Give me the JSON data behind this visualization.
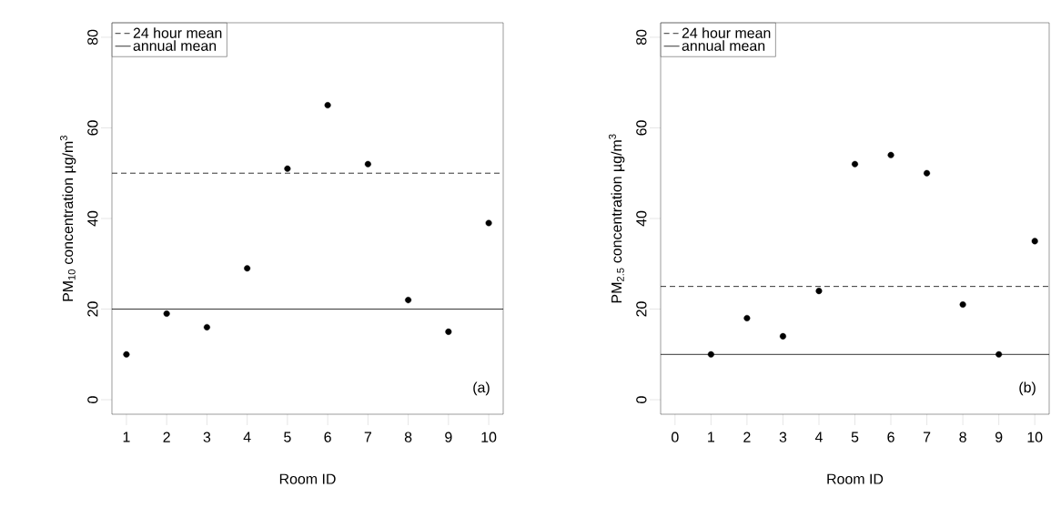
{
  "chart_data": [
    {
      "type": "scatter",
      "x": [
        1,
        2,
        3,
        4,
        5,
        6,
        7,
        8,
        9,
        10
      ],
      "values": [
        10,
        19,
        16,
        29,
        51,
        65,
        52,
        22,
        15,
        39
      ],
      "color": "#000000",
      "marker": "circle",
      "xlim": [
        0.64,
        10.36
      ],
      "ylim": [
        -3.2,
        83.2
      ],
      "xticks": [
        1,
        2,
        3,
        4,
        5,
        6,
        7,
        8,
        9,
        10
      ],
      "yticks": [
        0,
        20,
        40,
        60,
        80
      ],
      "xlabel": "Room ID",
      "ylabel": "PM$_{10}$ concentration µg/m$^{3}$",
      "ref_lines": [
        {
          "axis": "y",
          "value": 50,
          "label": "24 hour mean",
          "line_style": "dashed",
          "color": "#000000"
        },
        {
          "axis": "y",
          "value": 20,
          "label": "annual mean",
          "line_style": "solid",
          "color": "#000000"
        }
      ],
      "legend": "top left",
      "annotations": [
        "(a)"
      ]
    },
    {
      "type": "scatter",
      "x": [
        1,
        2,
        3,
        4,
        5,
        6,
        7,
        8,
        9,
        10
      ],
      "values": [
        10,
        18,
        14,
        24,
        52,
        54,
        50,
        21,
        10,
        35
      ],
      "color": "#000000",
      "marker": "circle",
      "xlim": [
        -0.4,
        10.4
      ],
      "ylim": [
        -3.2,
        83.2
      ],
      "xticks": [
        0,
        1,
        2,
        3,
        4,
        5,
        6,
        7,
        8,
        9,
        10
      ],
      "yticks": [
        0,
        20,
        40,
        60,
        80
      ],
      "xlabel": "Room ID",
      "ylabel": "PM$_{2.5}$ concentration µg/m$^{3}$",
      "ref_lines": [
        {
          "axis": "y",
          "value": 25,
          "label": "24 hour mean",
          "line_style": "dashed",
          "color": "#000000"
        },
        {
          "axis": "y",
          "value": 10,
          "label": "annual mean",
          "line_style": "solid",
          "color": "#000000"
        }
      ],
      "legend": "top left",
      "annotations": [
        "(b)"
      ]
    }
  ]
}
